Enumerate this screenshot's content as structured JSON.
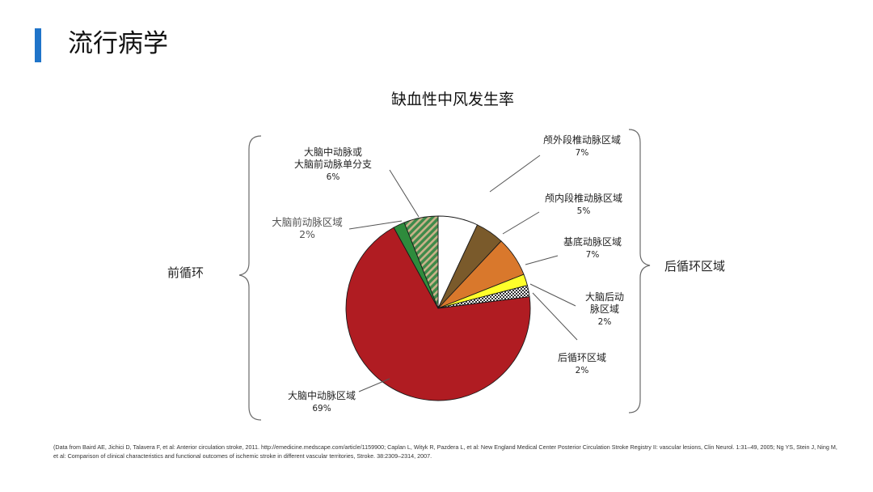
{
  "page": {
    "title": "流行病学",
    "accent_color": "#1f74c9",
    "citation": "(Data from Baird AE, Jichici D, Talavera F, et al: Anterior circulation stroke, 2011. http://emedicine.medscape.com/article/1159900; Caplan L, Wityk R, Pazdera L, et al: New England Medical Center Posterior Circulation Stroke Registry II: vascular lesions, Clin Neurol. 1:31–49, 2005; Ng YS, Stein J, Ning M, et al: Comparison of clinical characteristics and functional outcomes of ischemic stroke in different vascular territories, Stroke. 38:2309–2314, 2007."
  },
  "chart_data": {
    "type": "pie",
    "title": "缺血性中风发生率",
    "start": "12 o'clock",
    "direction": "clockwise",
    "slices": [
      {
        "label_lines": [
          "颅外段椎动脉区域"
        ],
        "value_label": "7%",
        "value": 7,
        "color": "#ffffff",
        "pattern": "solid"
      },
      {
        "label_lines": [
          "颅内段椎动脉区域"
        ],
        "value_label": "5%",
        "value": 5,
        "color": "#7a5a2b",
        "pattern": "solid"
      },
      {
        "label_lines": [
          "基底动脉区域"
        ],
        "value_label": "7%",
        "value": 7,
        "color": "#d9782c",
        "pattern": "solid"
      },
      {
        "label_lines": [
          "大脑后动",
          "脉区域"
        ],
        "value_label": "2%",
        "value": 2,
        "color": "#ffff2a",
        "pattern": "solid"
      },
      {
        "label_lines": [
          "后循环区域"
        ],
        "value_label": "2%",
        "value": 2,
        "color": "#ffffff",
        "pattern": "checker"
      },
      {
        "label_lines": [
          "大脑中动脉区域"
        ],
        "value_label": "69%",
        "value": 69,
        "color": "#b01c22",
        "pattern": "solid"
      },
      {
        "label_lines": [
          "大脑前动脉区域"
        ],
        "value_label": "2%",
        "value": 2,
        "color": "#2e8b3c",
        "pattern": "solid"
      },
      {
        "label_lines": [
          "大脑中动脉或",
          "大脑前动脉单分支"
        ],
        "value_label": "6%",
        "value": 6,
        "color": "#3f8a4a",
        "pattern": "diagonal-stripes"
      }
    ],
    "groups": [
      {
        "label": "前循环"
      },
      {
        "label": "后循环区域"
      }
    ]
  }
}
